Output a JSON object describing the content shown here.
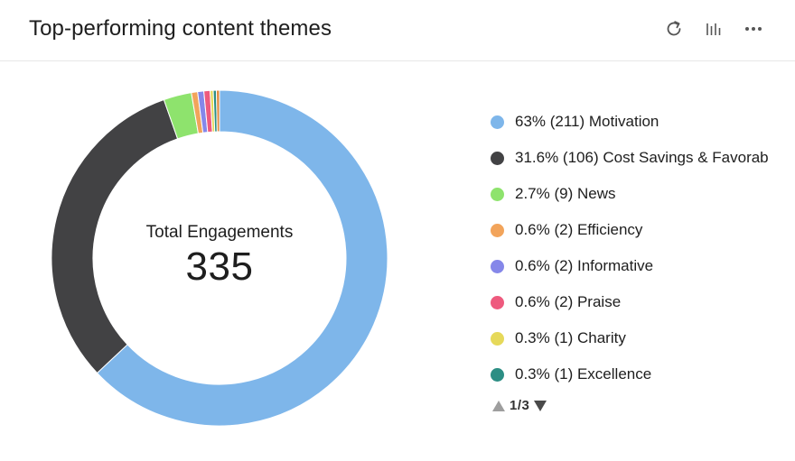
{
  "header": {
    "title": "Top-performing content themes",
    "tools": [
      {
        "icon": "refresh-icon"
      },
      {
        "icon": "bar-chart-icon"
      },
      {
        "icon": "more-options-icon"
      }
    ]
  },
  "center": {
    "label": "Total Engagements",
    "value": "335"
  },
  "legend": {
    "items": [
      {
        "text": "63% (211) Motivation",
        "color": "#7EB6EA"
      },
      {
        "text": "31.6% (106) Cost Savings & Favorab",
        "color": "#424244"
      },
      {
        "text": "2.7% (9) News",
        "color": "#8EE36D"
      },
      {
        "text": "0.6% (2) Efficiency",
        "color": "#F2A45B"
      },
      {
        "text": "0.6% (2) Informative",
        "color": "#8587E9"
      },
      {
        "text": "0.6% (2) Praise",
        "color": "#EE5A7E"
      },
      {
        "text": "0.3% (1) Charity",
        "color": "#E6D95A"
      },
      {
        "text": "0.3% (1) Excellence",
        "color": "#2C8E84"
      }
    ]
  },
  "pager": {
    "text": "1/3",
    "up_color": "#9E9E9E",
    "down_color": "#4A4A4A"
  },
  "chart_data": {
    "type": "pie",
    "variant": "donut",
    "total": 335,
    "slices": [
      {
        "name": "Motivation",
        "value": 211,
        "percent": 63,
        "color": "#7EB6EA"
      },
      {
        "name": "Cost Savings & Favorab",
        "value": 106,
        "percent": 31.6,
        "color": "#424244"
      },
      {
        "name": "News",
        "value": 9,
        "percent": 2.7,
        "color": "#8EE36D"
      },
      {
        "name": "Efficiency",
        "value": 2,
        "percent": 0.6,
        "color": "#F2A45B"
      },
      {
        "name": "Informative",
        "value": 2,
        "percent": 0.6,
        "color": "#8587E9"
      },
      {
        "name": "Praise",
        "value": 2,
        "percent": 0.6,
        "color": "#EE5A7E"
      },
      {
        "name": "Charity",
        "value": 1,
        "percent": 0.3,
        "color": "#E6D95A"
      },
      {
        "name": "Excellence",
        "value": 1,
        "percent": 0.3,
        "color": "#2C8E84"
      },
      {
        "name": "",
        "value": 1,
        "percent": 0.3,
        "color": "#E08A3C"
      }
    ],
    "legend_position": "right"
  }
}
